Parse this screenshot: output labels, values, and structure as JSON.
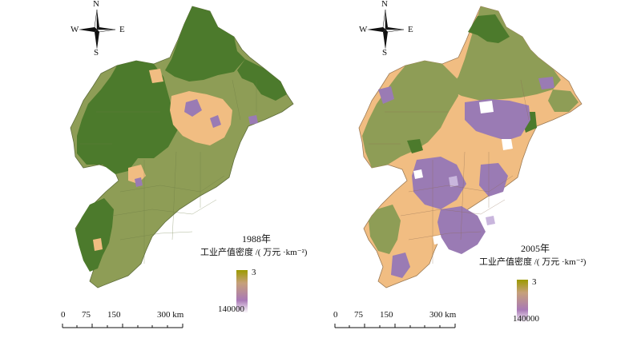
{
  "compass": {
    "n": "N",
    "s": "S",
    "w": "W",
    "e": "E"
  },
  "scalebar": {
    "ticks": [
      "0",
      "75",
      "150",
      "300 km"
    ]
  },
  "panels": [
    {
      "year": "1988年",
      "caption": "工业产值密度 /( 万元 ·km⁻²)",
      "legend_low": "3",
      "legend_high": "140000"
    },
    {
      "year": "2005年",
      "caption": "工业产值密度 /( 万元 ·km⁻²)",
      "legend_low": "3",
      "legend_high": "140000"
    }
  ],
  "colors": {
    "dark_green": "#4c7a2c",
    "olive": "#8e9d56",
    "tan": "#f1bd82",
    "purple": "#9a7bb4",
    "lavender": "#c9b6dd"
  }
}
